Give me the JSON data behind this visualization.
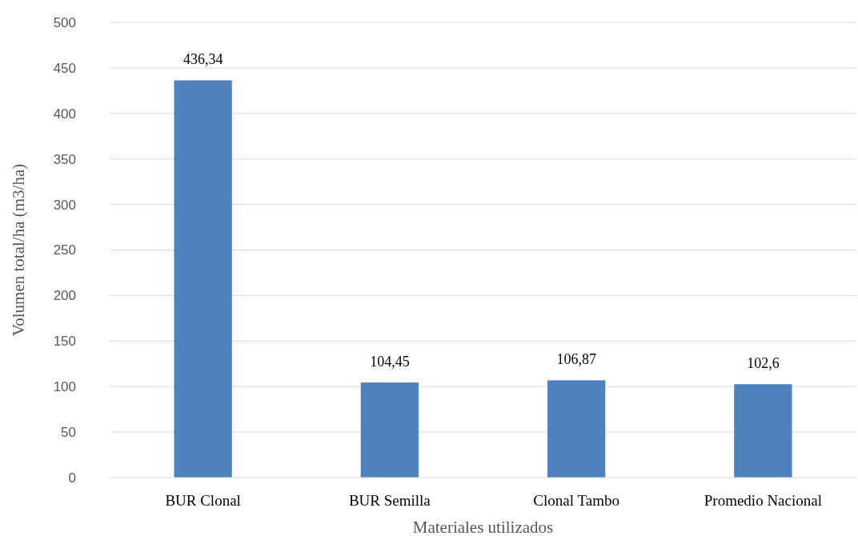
{
  "chart_data": {
    "type": "bar",
    "xlabel": "Materiales utilizados",
    "ylabel": "Volumen total/ha (m3/ha)",
    "categories": [
      "BUR Clonal",
      "BUR Semilla",
      "Clonal Tambo",
      "Promedio Nacional"
    ],
    "values": [
      436.34,
      104.45,
      106.87,
      102.6
    ],
    "value_labels": [
      "436,34",
      "104,45",
      "106,87",
      "102,6"
    ],
    "color": "#4f81bd",
    "ylim": [
      0,
      500
    ],
    "yticks": [
      0,
      50,
      100,
      150,
      200,
      250,
      300,
      350,
      400,
      450,
      500
    ],
    "grid": "y"
  }
}
